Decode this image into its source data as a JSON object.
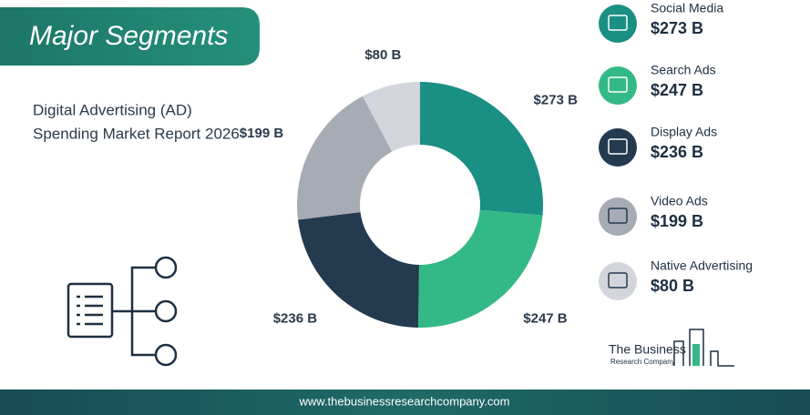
{
  "header": {
    "title": "Major Segments",
    "subtitle_lines": [
      "Digital Advertising (AD)",
      "Spending Market Report 2026"
    ]
  },
  "chart_data": {
    "type": "donut",
    "categories": [
      "Social Media",
      "Search Ads",
      "Display Ads",
      "Video Ads",
      "Native Advertising"
    ],
    "values": [
      273,
      247,
      236,
      199,
      80
    ],
    "value_labels": [
      "$273 B",
      "$247 B",
      "$236 B",
      "$199 B",
      "$80 B"
    ],
    "colors": [
      "#1a8f84",
      "#33b987",
      "#243a4f",
      "#a7abb4",
      "#d3d5dc"
    ]
  },
  "logo": {
    "line1": "The Business",
    "line2": "Research Company"
  },
  "footer": {
    "url": "www.thebusinessresearchcompany.com"
  }
}
